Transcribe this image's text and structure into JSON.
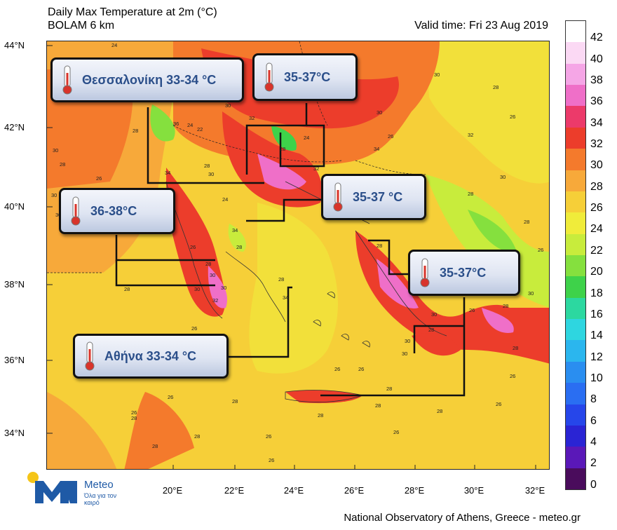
{
  "header": {
    "title_line1": "Daily Max Temperature at 2m (°C)",
    "title_line2": "BOLAM 6 km",
    "valid_time": "Valid time: Fri 23 Aug 2019"
  },
  "footer": {
    "credit": "National Observatory of Athens, Greece - meteo.gr"
  },
  "axes": {
    "lat_labels": [
      "44°N",
      "42°N",
      "40°N",
      "38°N",
      "36°N",
      "34°N"
    ],
    "lon_labels": [
      "20°E",
      "22°E",
      "24°E",
      "26°E",
      "28°E",
      "30°E",
      "32°E"
    ]
  },
  "colorbar": {
    "labels": [
      "42",
      "40",
      "38",
      "36",
      "34",
      "32",
      "30",
      "28",
      "26",
      "24",
      "22",
      "20",
      "18",
      "16",
      "14",
      "12",
      "10",
      "8",
      "6",
      "4",
      "2",
      "0"
    ],
    "colors": [
      "#ffffff",
      "#fbd9f4",
      "#f5a6e6",
      "#ef6fc8",
      "#ec3a6a",
      "#ec3d2b",
      "#f47a2c",
      "#f7a93a",
      "#f6cf38",
      "#f0ec3a",
      "#c8ec3c",
      "#85e03e",
      "#3ed24a",
      "#2cd8a0",
      "#2ed6e0",
      "#2bb6ee",
      "#2a8ef0",
      "#2a6ef2",
      "#2646ea",
      "#2a24d4",
      "#5a18b8",
      "#4a0c5c"
    ]
  },
  "callouts": {
    "thessaloniki": "Θεσσαλονίκη 33-34 °C",
    "north": "35-37°C",
    "east": "35-37 °C",
    "west": "36-38°C",
    "southeast": "35-37°C",
    "athens": "Αθήνα 33-34 °C"
  },
  "map_values": [
    "24",
    "30",
    "28",
    "30",
    "36",
    "28",
    "30",
    "28",
    "34",
    "26",
    "28",
    "32",
    "32",
    "32",
    "30",
    "30",
    "32",
    "24",
    "22",
    "28",
    "24",
    "26",
    "28",
    "32",
    "28",
    "26",
    "30",
    "34",
    "26",
    "24",
    "30",
    "24",
    "26",
    "34",
    "28",
    "28",
    "30",
    "30",
    "32",
    "30",
    "26",
    "28",
    "34",
    "28",
    "30",
    "28",
    "30",
    "30",
    "32",
    "26",
    "28",
    "30",
    "28",
    "26",
    "26",
    "28",
    "30",
    "28",
    "26",
    "32",
    "30",
    "28",
    "26",
    "28",
    "26",
    "28",
    "26",
    "28",
    "26",
    "28",
    "28",
    "26",
    "28",
    "28",
    "26",
    "26",
    "26",
    "28"
  ],
  "logo": {
    "name": "Meteo",
    "tagline": "Όλα για τον καιρό"
  }
}
